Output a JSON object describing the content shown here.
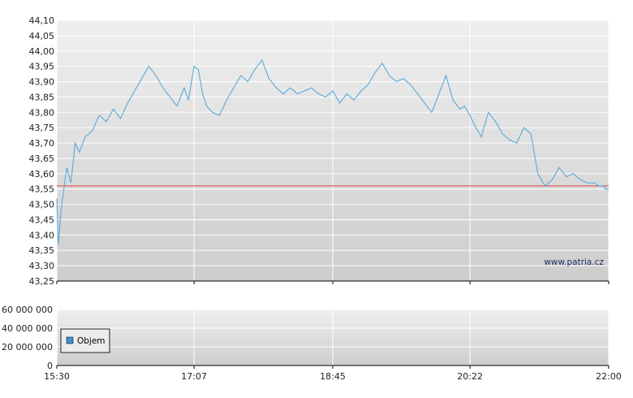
{
  "watermark": "www.patria.cz",
  "colors": {
    "price_line": "#5aaad8",
    "reference_line": "#e04040",
    "volume_legend_swatch": "#3d8fd0",
    "plot_top": "#efefef",
    "plot_bottom": "#cdcdcd",
    "grid": "#ffffff"
  },
  "chart_data": [
    {
      "type": "line",
      "title": "",
      "xlabel": "",
      "ylabel": "",
      "ylim": [
        43.25,
        44.1
      ],
      "y_ticks": [
        "43,25",
        "43,30",
        "43,35",
        "43,40",
        "43,45",
        "43,50",
        "43,55",
        "43,60",
        "43,65",
        "43,70",
        "43,75",
        "43,80",
        "43,85",
        "43,90",
        "43,95",
        "44,00",
        "44,05",
        "44,10"
      ],
      "x_ticks": [
        "15:30",
        "17:07",
        "18:45",
        "20:22",
        "22:00"
      ],
      "reference_line": 43.56,
      "grid": true,
      "series": [
        {
          "x": [
            "15:30",
            "15:31",
            "15:32",
            "15:33",
            "15:35",
            "15:37",
            "15:40",
            "15:43",
            "15:46",
            "15:50",
            "15:55",
            "16:00",
            "16:05",
            "16:10",
            "16:15",
            "16:20",
            "16:25",
            "16:30",
            "16:35",
            "16:40",
            "16:45",
            "16:50",
            "16:55",
            "17:00",
            "17:03",
            "17:07",
            "17:10",
            "17:13",
            "17:16",
            "17:20",
            "17:25",
            "17:30",
            "17:35",
            "17:40",
            "17:45",
            "17:50",
            "17:55",
            "18:00",
            "18:05",
            "18:10",
            "18:15",
            "18:20",
            "18:25",
            "18:30",
            "18:35",
            "18:40",
            "18:45",
            "18:50",
            "18:55",
            "19:00",
            "19:05",
            "19:10",
            "19:15",
            "19:20",
            "19:25",
            "19:30",
            "19:35",
            "19:40",
            "19:45",
            "19:50",
            "19:55",
            "20:00",
            "20:05",
            "20:10",
            "20:15",
            "20:18",
            "20:22",
            "20:25",
            "20:30",
            "20:35",
            "20:40",
            "20:45",
            "20:50",
            "20:55",
            "21:00",
            "21:05",
            "21:10",
            "21:15",
            "21:20",
            "21:25",
            "21:30",
            "21:35",
            "21:40",
            "21:45",
            "21:50",
            "21:53",
            "21:56",
            "21:58",
            "22:00"
          ],
          "values": [
            43.52,
            43.37,
            43.42,
            43.48,
            43.55,
            43.62,
            43.57,
            43.7,
            43.67,
            43.72,
            43.74,
            43.79,
            43.77,
            43.81,
            43.78,
            43.83,
            43.87,
            43.91,
            43.95,
            43.92,
            43.88,
            43.85,
            43.82,
            43.88,
            43.84,
            43.95,
            43.94,
            43.86,
            43.82,
            43.8,
            43.79,
            43.84,
            43.88,
            43.92,
            43.9,
            43.94,
            43.97,
            43.91,
            43.88,
            43.86,
            43.88,
            43.86,
            43.87,
            43.88,
            43.86,
            43.85,
            43.87,
            43.83,
            43.86,
            43.84,
            43.87,
            43.89,
            43.93,
            43.96,
            43.92,
            43.9,
            43.91,
            43.89,
            43.86,
            43.83,
            43.8,
            43.86,
            43.92,
            43.84,
            43.81,
            43.82,
            43.79,
            43.76,
            43.72,
            43.8,
            43.77,
            43.73,
            43.71,
            43.7,
            43.75,
            43.73,
            43.6,
            43.56,
            43.58,
            43.62,
            43.59,
            43.6,
            43.58,
            43.57,
            43.57,
            43.56,
            43.56,
            43.55,
            43.55
          ]
        }
      ]
    },
    {
      "type": "bar",
      "title": "",
      "xlabel": "",
      "ylabel": "",
      "ylim": [
        0,
        60000000
      ],
      "y_ticks": [
        "0",
        "20 000 000",
        "40 000 000",
        "60 000 000"
      ],
      "x_ticks": [
        "15:30",
        "17:07",
        "18:45",
        "20:22",
        "22:00"
      ],
      "legend": {
        "placement": "left"
      },
      "series": [
        {
          "name": "Objem",
          "values": []
        }
      ]
    }
  ]
}
